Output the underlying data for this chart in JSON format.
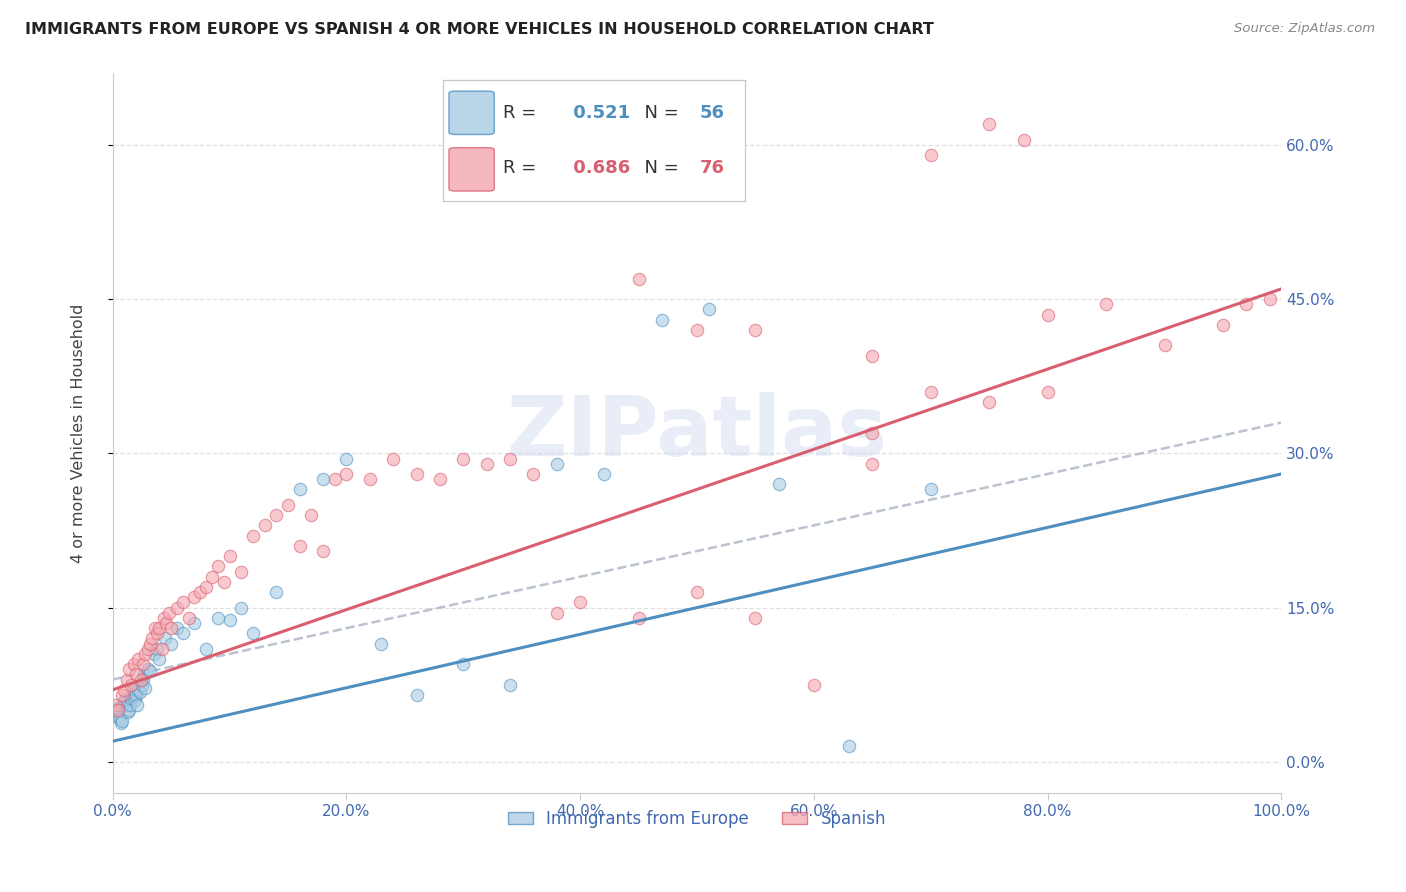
{
  "title": "IMMIGRANTS FROM EUROPE VS SPANISH 4 OR MORE VEHICLES IN HOUSEHOLD CORRELATION CHART",
  "source": "Source: ZipAtlas.com",
  "ylabel": "4 or more Vehicles in Household",
  "legend_label_1": "Immigrants from Europe",
  "legend_label_2": "Spanish",
  "R1": 0.521,
  "N1": 56,
  "R2": 0.686,
  "N2": 76,
  "color_blue": "#a8cce4",
  "color_pink": "#f4a7b0",
  "color_line_blue": "#4f8fc0",
  "color_line_pink": "#d95f70",
  "color_dashed": "#b0b8c8",
  "watermark": "ZIPatlas",
  "xlim": [
    0,
    100
  ],
  "ylim": [
    -3,
    67
  ],
  "ytick_vals": [
    0,
    15,
    30,
    45,
    60
  ],
  "xtick_vals": [
    0,
    20,
    40,
    60,
    80,
    100
  ],
  "blue_x": [
    0.2,
    0.3,
    0.4,
    0.5,
    0.6,
    0.7,
    0.8,
    0.9,
    1.0,
    1.1,
    1.2,
    1.3,
    1.4,
    1.5,
    1.6,
    1.7,
    1.8,
    1.9,
    2.0,
    2.1,
    2.2,
    2.3,
    2.5,
    2.6,
    2.7,
    2.8,
    3.0,
    3.2,
    3.5,
    3.8,
    4.0,
    4.5,
    5.0,
    5.5,
    6.0,
    7.0,
    8.0,
    9.0,
    10.0,
    11.0,
    12.0,
    14.0,
    16.0,
    18.0,
    20.0,
    23.0,
    26.0,
    30.0,
    34.0,
    38.0,
    42.0,
    47.0,
    51.0,
    57.0,
    63.0,
    70.0
  ],
  "blue_y": [
    5.0,
    4.5,
    4.8,
    5.2,
    4.2,
    3.8,
    4.0,
    5.5,
    5.8,
    6.0,
    5.5,
    4.8,
    5.0,
    5.5,
    6.2,
    6.5,
    7.0,
    6.0,
    6.5,
    5.5,
    7.0,
    6.8,
    7.5,
    8.0,
    8.5,
    7.2,
    9.0,
    8.8,
    10.5,
    11.0,
    10.0,
    12.0,
    11.5,
    13.0,
    12.5,
    13.5,
    11.0,
    14.0,
    13.8,
    15.0,
    12.5,
    16.5,
    26.5,
    27.5,
    29.5,
    11.5,
    6.5,
    9.5,
    7.5,
    29.0,
    28.0,
    43.0,
    44.0,
    27.0,
    1.5,
    26.5
  ],
  "pink_x": [
    0.3,
    0.5,
    0.8,
    1.0,
    1.2,
    1.4,
    1.6,
    1.8,
    2.0,
    2.2,
    2.4,
    2.6,
    2.8,
    3.0,
    3.2,
    3.4,
    3.6,
    3.8,
    4.0,
    4.2,
    4.4,
    4.6,
    4.8,
    5.0,
    5.5,
    6.0,
    6.5,
    7.0,
    7.5,
    8.0,
    8.5,
    9.0,
    9.5,
    10.0,
    11.0,
    12.0,
    13.0,
    14.0,
    15.0,
    16.0,
    17.0,
    18.0,
    19.0,
    20.0,
    22.0,
    24.0,
    26.0,
    28.0,
    30.0,
    32.0,
    34.0,
    36.0,
    38.0,
    40.0,
    45.0,
    50.0,
    55.0,
    60.0,
    65.0,
    70.0,
    75.0,
    80.0,
    85.0,
    90.0,
    95.0,
    97.0,
    99.0,
    65.0,
    70.0,
    75.0,
    80.0,
    55.0,
    65.0,
    50.0,
    45.0,
    78.0
  ],
  "pink_y": [
    5.5,
    5.0,
    6.5,
    7.0,
    8.0,
    9.0,
    7.5,
    9.5,
    8.5,
    10.0,
    8.0,
    9.5,
    10.5,
    11.0,
    11.5,
    12.0,
    13.0,
    12.5,
    13.0,
    11.0,
    14.0,
    13.5,
    14.5,
    13.0,
    15.0,
    15.5,
    14.0,
    16.0,
    16.5,
    17.0,
    18.0,
    19.0,
    17.5,
    20.0,
    18.5,
    22.0,
    23.0,
    24.0,
    25.0,
    21.0,
    24.0,
    20.5,
    27.5,
    28.0,
    27.5,
    29.5,
    28.0,
    27.5,
    29.5,
    29.0,
    29.5,
    28.0,
    14.5,
    15.5,
    14.0,
    16.5,
    14.0,
    7.5,
    29.0,
    36.0,
    35.0,
    43.5,
    44.5,
    40.5,
    42.5,
    44.5,
    45.0,
    32.0,
    59.0,
    62.0,
    36.0,
    42.0,
    39.5,
    42.0,
    47.0,
    60.5
  ],
  "blue_reg": [
    2.0,
    28.0
  ],
  "pink_reg": [
    7.0,
    46.0
  ],
  "dash_reg": [
    8.0,
    33.0
  ],
  "axis_label_color": "#4169b0",
  "title_color": "#222222",
  "source_color": "#888888",
  "grid_color": "#e0e0e0",
  "spine_color": "#cccccc"
}
